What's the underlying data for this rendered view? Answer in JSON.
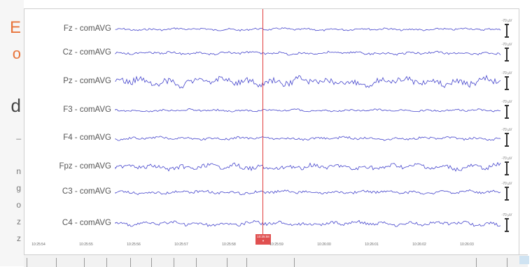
{
  "channels": [
    "Fz - comAVG",
    "Cz - comAVG",
    "Pz - comAVG",
    "F3 - comAVG",
    "F4 - comAVG",
    "Fpz - comAVG",
    "C3 - comAVG",
    "C4 - comAVG"
  ],
  "scale_label": "-70 µV",
  "cursor_time": "10:25:58",
  "time_labels": [
    "10:25:54",
    "10:25:55",
    "10:25:56",
    "10:25:57",
    "10:25:58",
    "10:25:59",
    "10:26:00",
    "10:26:01",
    "10:26:02",
    "10:26:03"
  ],
  "colors": {
    "trace": "#4444cc",
    "cursor": "#e03c3c",
    "accent": "#e8743b"
  },
  "left_strip": {
    "chars": [
      "E",
      "o",
      "d",
      "_",
      "n",
      "g",
      "o",
      "z",
      "z"
    ]
  }
}
